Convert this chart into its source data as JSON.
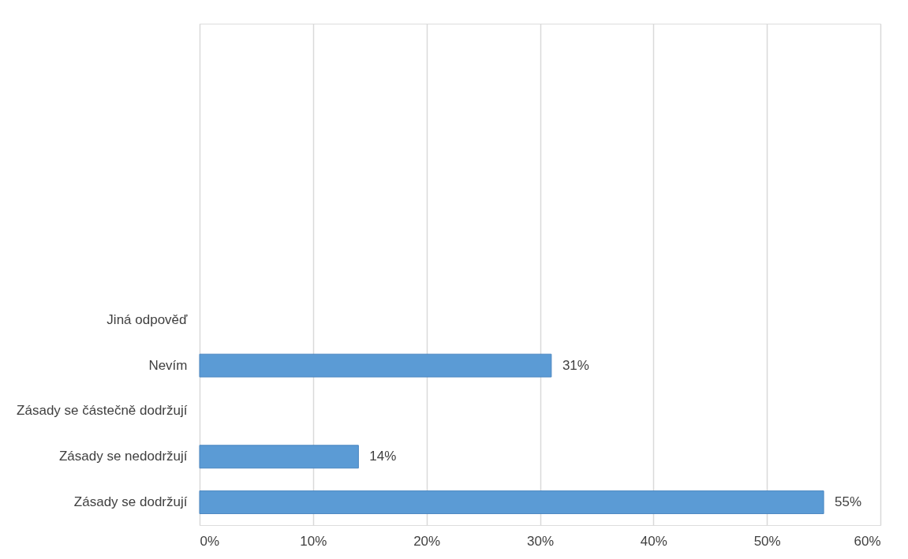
{
  "chart_data": {
    "type": "bar",
    "orientation": "horizontal",
    "categories": [
      null,
      null,
      null,
      null,
      null,
      null,
      "Jiná odpověď",
      "Nevím",
      "Zásady se částečně dodržují",
      "Zásady se nedodržují",
      "Zásady se dodržují"
    ],
    "values": [
      null,
      null,
      null,
      null,
      null,
      null,
      null,
      31,
      null,
      14,
      55
    ],
    "value_labels": [
      null,
      null,
      null,
      null,
      null,
      null,
      null,
      "31%",
      null,
      "14%",
      "55%"
    ],
    "color": "#5b9bd5",
    "xlim": [
      0,
      60
    ],
    "xticks": [
      {
        "value": 0,
        "label": "0%"
      },
      {
        "value": 10,
        "label": "10%"
      },
      {
        "value": 20,
        "label": "20%"
      },
      {
        "value": 30,
        "label": "30%"
      },
      {
        "value": 40,
        "label": "40%"
      },
      {
        "value": 50,
        "label": "50%"
      },
      {
        "value": 60,
        "label": "60%"
      }
    ],
    "grid": "x"
  }
}
